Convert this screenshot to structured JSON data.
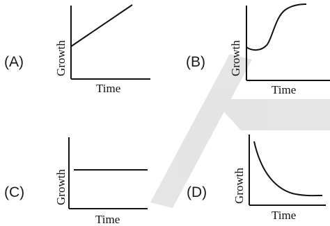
{
  "colors": {
    "ink": "#111111",
    "watermark": "#cfcfcf",
    "background": "#ffffff"
  },
  "options": [
    {
      "id": "A",
      "label": "(A)",
      "xlabel": "Time",
      "ylabel": "Growth"
    },
    {
      "id": "B",
      "label": "(B)",
      "xlabel": "Time",
      "ylabel": "Growth"
    },
    {
      "id": "C",
      "label": "(C)",
      "xlabel": "Time",
      "ylabel": "Growth"
    },
    {
      "id": "D",
      "label": "(D)",
      "xlabel": "Time",
      "ylabel": "Growth"
    }
  ]
}
